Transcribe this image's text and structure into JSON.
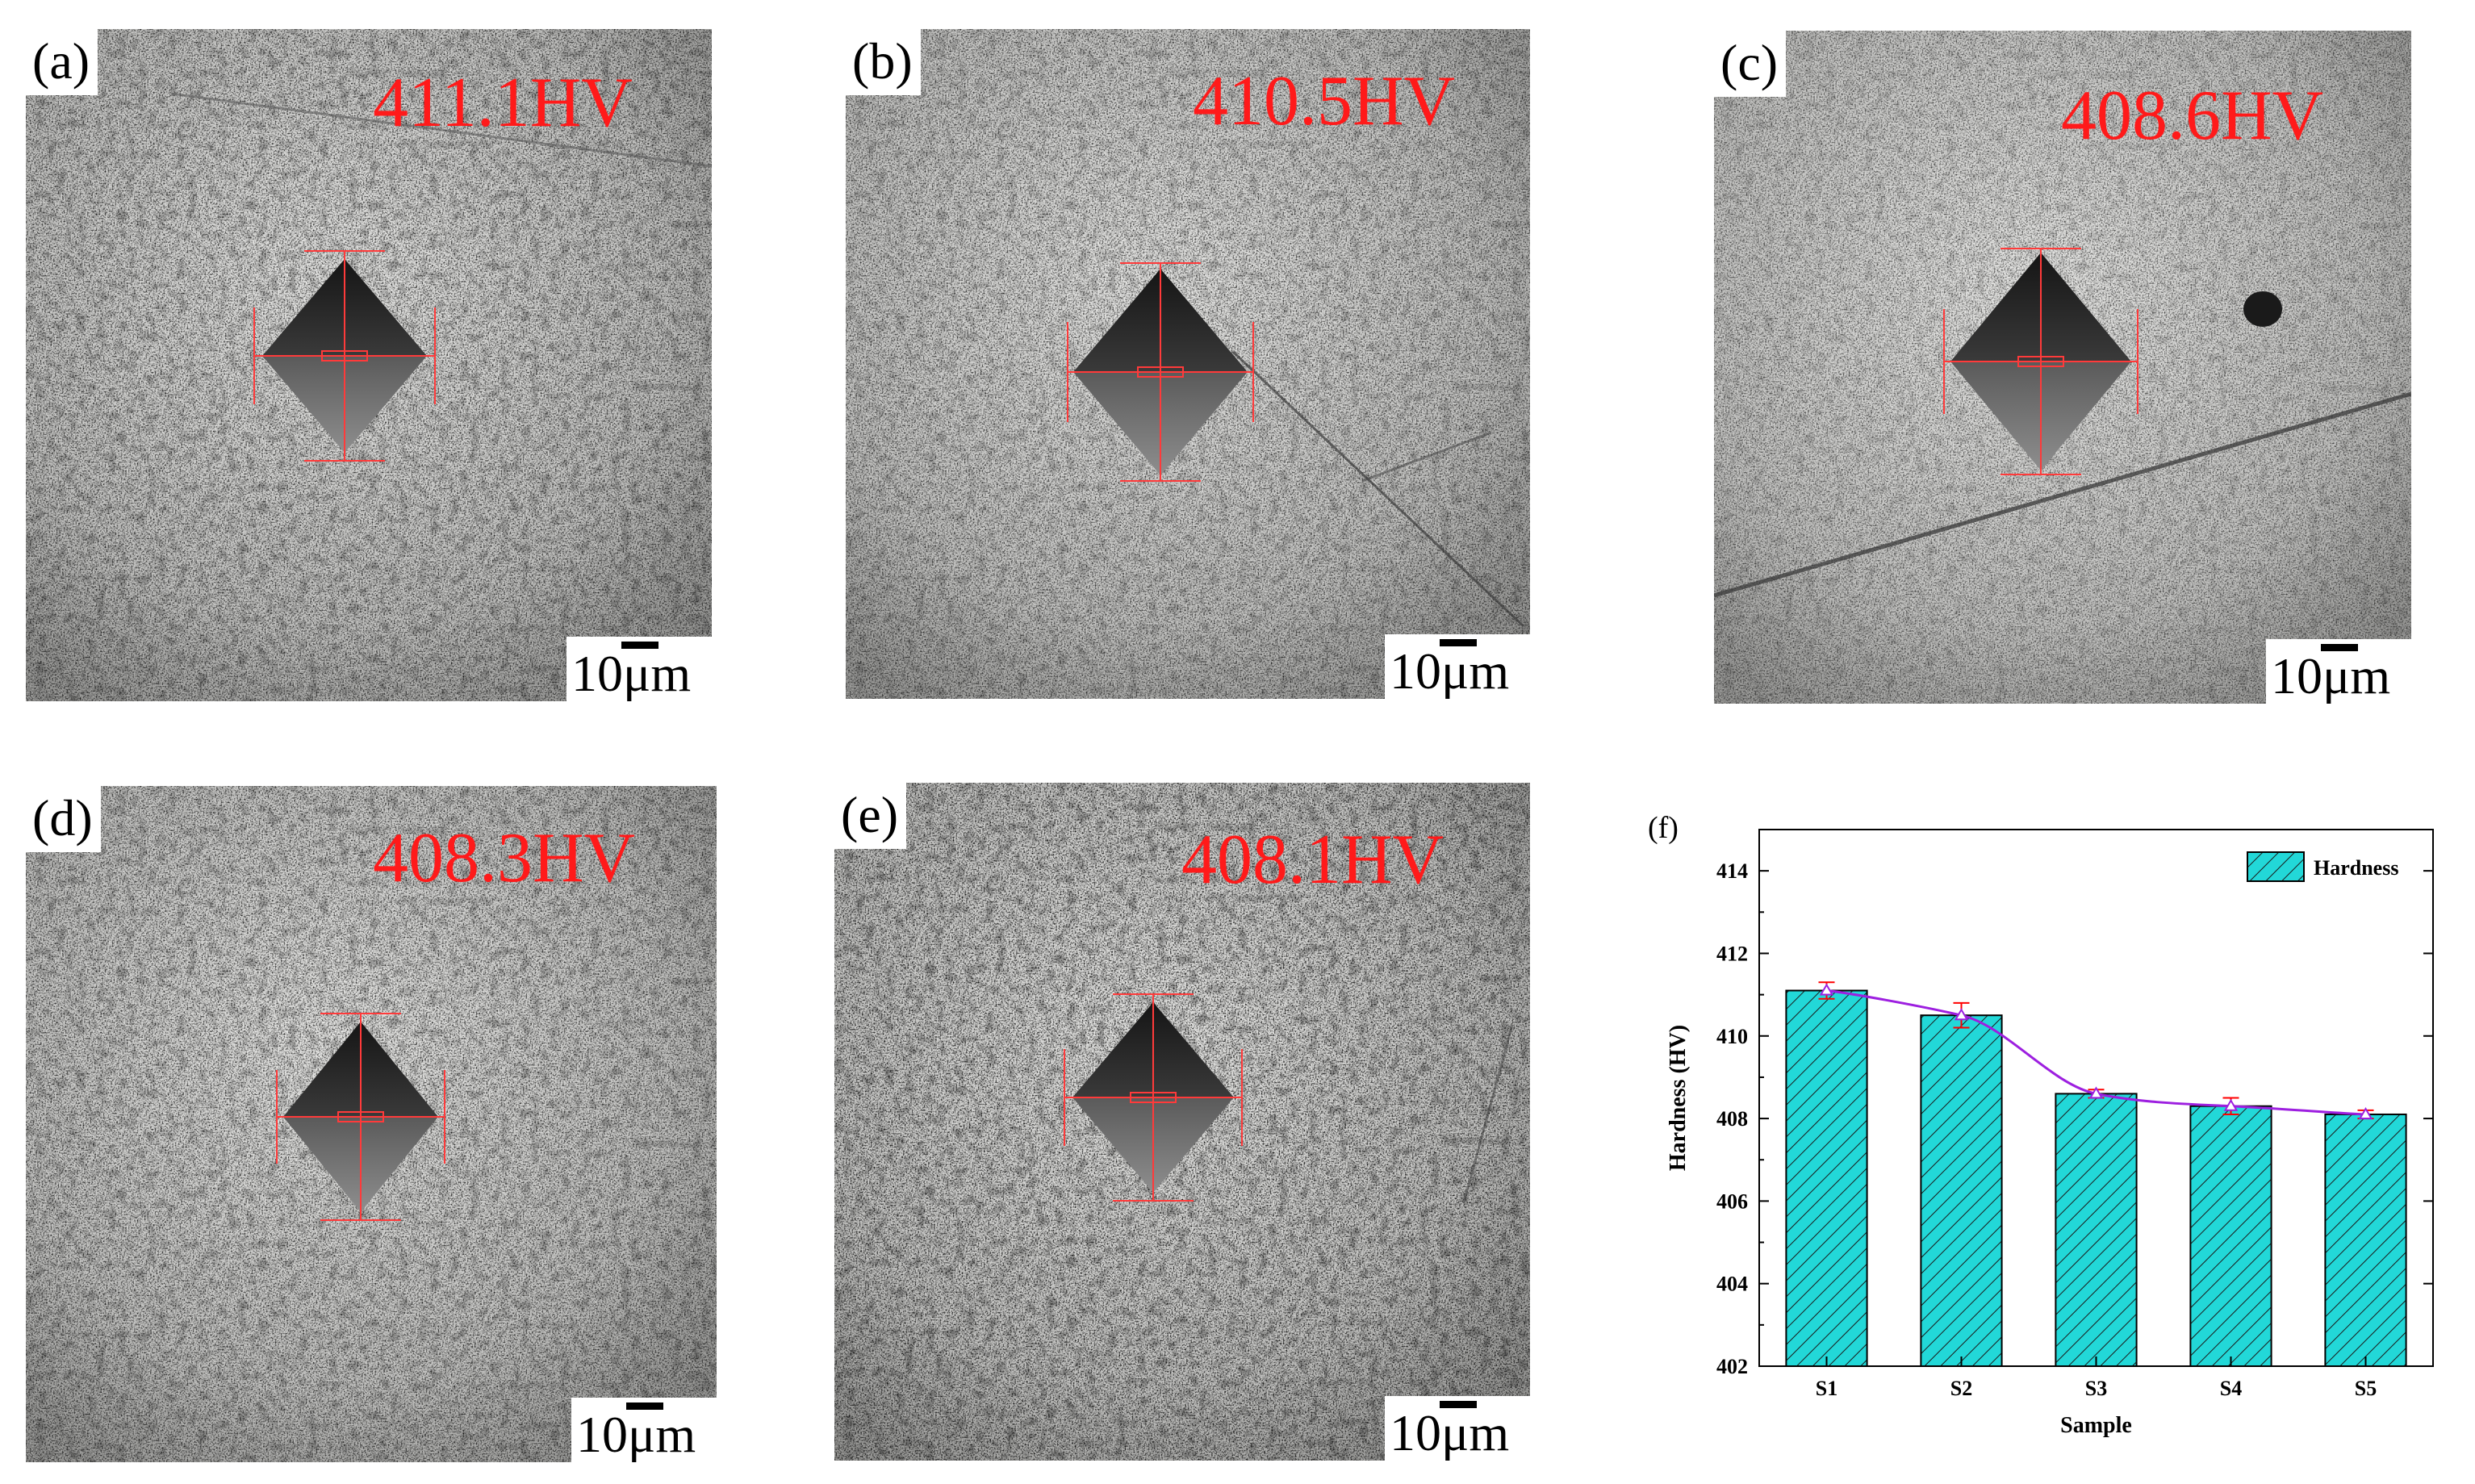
{
  "panels": [
    {
      "letter": "(a)",
      "hardness_label": "411.1HV",
      "scale_value": "10",
      "scale_unit": "μm"
    },
    {
      "letter": "(b)",
      "hardness_label": "410.5HV",
      "scale_value": "10",
      "scale_unit": "μm"
    },
    {
      "letter": "(c)",
      "hardness_label": "408.6HV",
      "scale_value": "10",
      "scale_unit": "μm"
    },
    {
      "letter": "(d)",
      "hardness_label": "408.3HV",
      "scale_value": "10",
      "scale_unit": "μm"
    },
    {
      "letter": "(e)",
      "hardness_label": "408.1HV",
      "scale_value": "10",
      "scale_unit": "μm"
    }
  ],
  "chart": {
    "panel_letter": "(f)",
    "colors": {
      "bar_fill": "#22d8d8",
      "trend_line": "#9d1fe0",
      "error_bar": "#ff0000"
    }
  },
  "chart_data": {
    "type": "bar",
    "title": "",
    "xlabel": "Sample",
    "ylabel": "Hardness (HV)",
    "categories": [
      "S1",
      "S2",
      "S3",
      "S4",
      "S5"
    ],
    "series": [
      {
        "name": "Hardness",
        "values": [
          411.1,
          410.5,
          408.6,
          408.3,
          408.1
        ],
        "errors": [
          0.2,
          0.3,
          0.1,
          0.2,
          0.1
        ]
      }
    ],
    "ylim": [
      402,
      415
    ],
    "yticks": [
      402,
      404,
      406,
      408,
      410,
      412,
      414
    ],
    "legend": "top-right",
    "grid": false,
    "trend_line": true
  }
}
